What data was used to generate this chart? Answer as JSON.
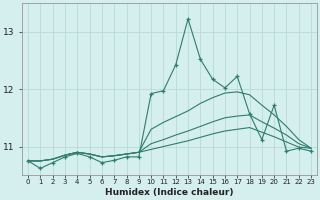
{
  "xlabel": "Humidex (Indice chaleur)",
  "x_values": [
    0,
    1,
    2,
    3,
    4,
    5,
    6,
    7,
    8,
    9,
    10,
    11,
    12,
    13,
    14,
    15,
    16,
    17,
    18,
    19,
    20,
    21,
    22,
    23
  ],
  "line1_y": [
    10.75,
    10.62,
    10.72,
    10.82,
    10.88,
    10.82,
    10.72,
    10.76,
    10.82,
    10.82,
    11.92,
    11.97,
    12.42,
    13.22,
    12.52,
    12.17,
    12.02,
    12.22,
    11.57,
    11.12,
    11.72,
    10.92,
    10.97,
    10.92
  ],
  "line2_y": [
    10.75,
    10.75,
    10.78,
    10.85,
    10.9,
    10.87,
    10.82,
    10.84,
    10.87,
    10.9,
    11.3,
    11.42,
    11.52,
    11.62,
    11.75,
    11.85,
    11.93,
    11.95,
    11.9,
    11.72,
    11.55,
    11.35,
    11.12,
    10.97
  ],
  "line3_y": [
    10.75,
    10.75,
    10.78,
    10.85,
    10.9,
    10.87,
    10.82,
    10.84,
    10.87,
    10.9,
    11.05,
    11.12,
    11.2,
    11.27,
    11.35,
    11.43,
    11.5,
    11.53,
    11.55,
    11.43,
    11.32,
    11.2,
    11.05,
    10.97
  ],
  "line4_y": [
    10.75,
    10.75,
    10.78,
    10.85,
    10.9,
    10.87,
    10.82,
    10.84,
    10.87,
    10.9,
    10.95,
    11.0,
    11.05,
    11.1,
    11.16,
    11.22,
    11.27,
    11.3,
    11.33,
    11.25,
    11.17,
    11.08,
    10.99,
    10.97
  ],
  "line_color": "#2e7d6e",
  "background_color": "#d5eeee",
  "grid_color": "#b8dada",
  "ylim": [
    10.5,
    13.5
  ],
  "xlim": [
    -0.5,
    23.5
  ],
  "yticks": [
    11,
    12,
    13
  ],
  "figsize": [
    3.2,
    2.0
  ],
  "dpi": 100
}
